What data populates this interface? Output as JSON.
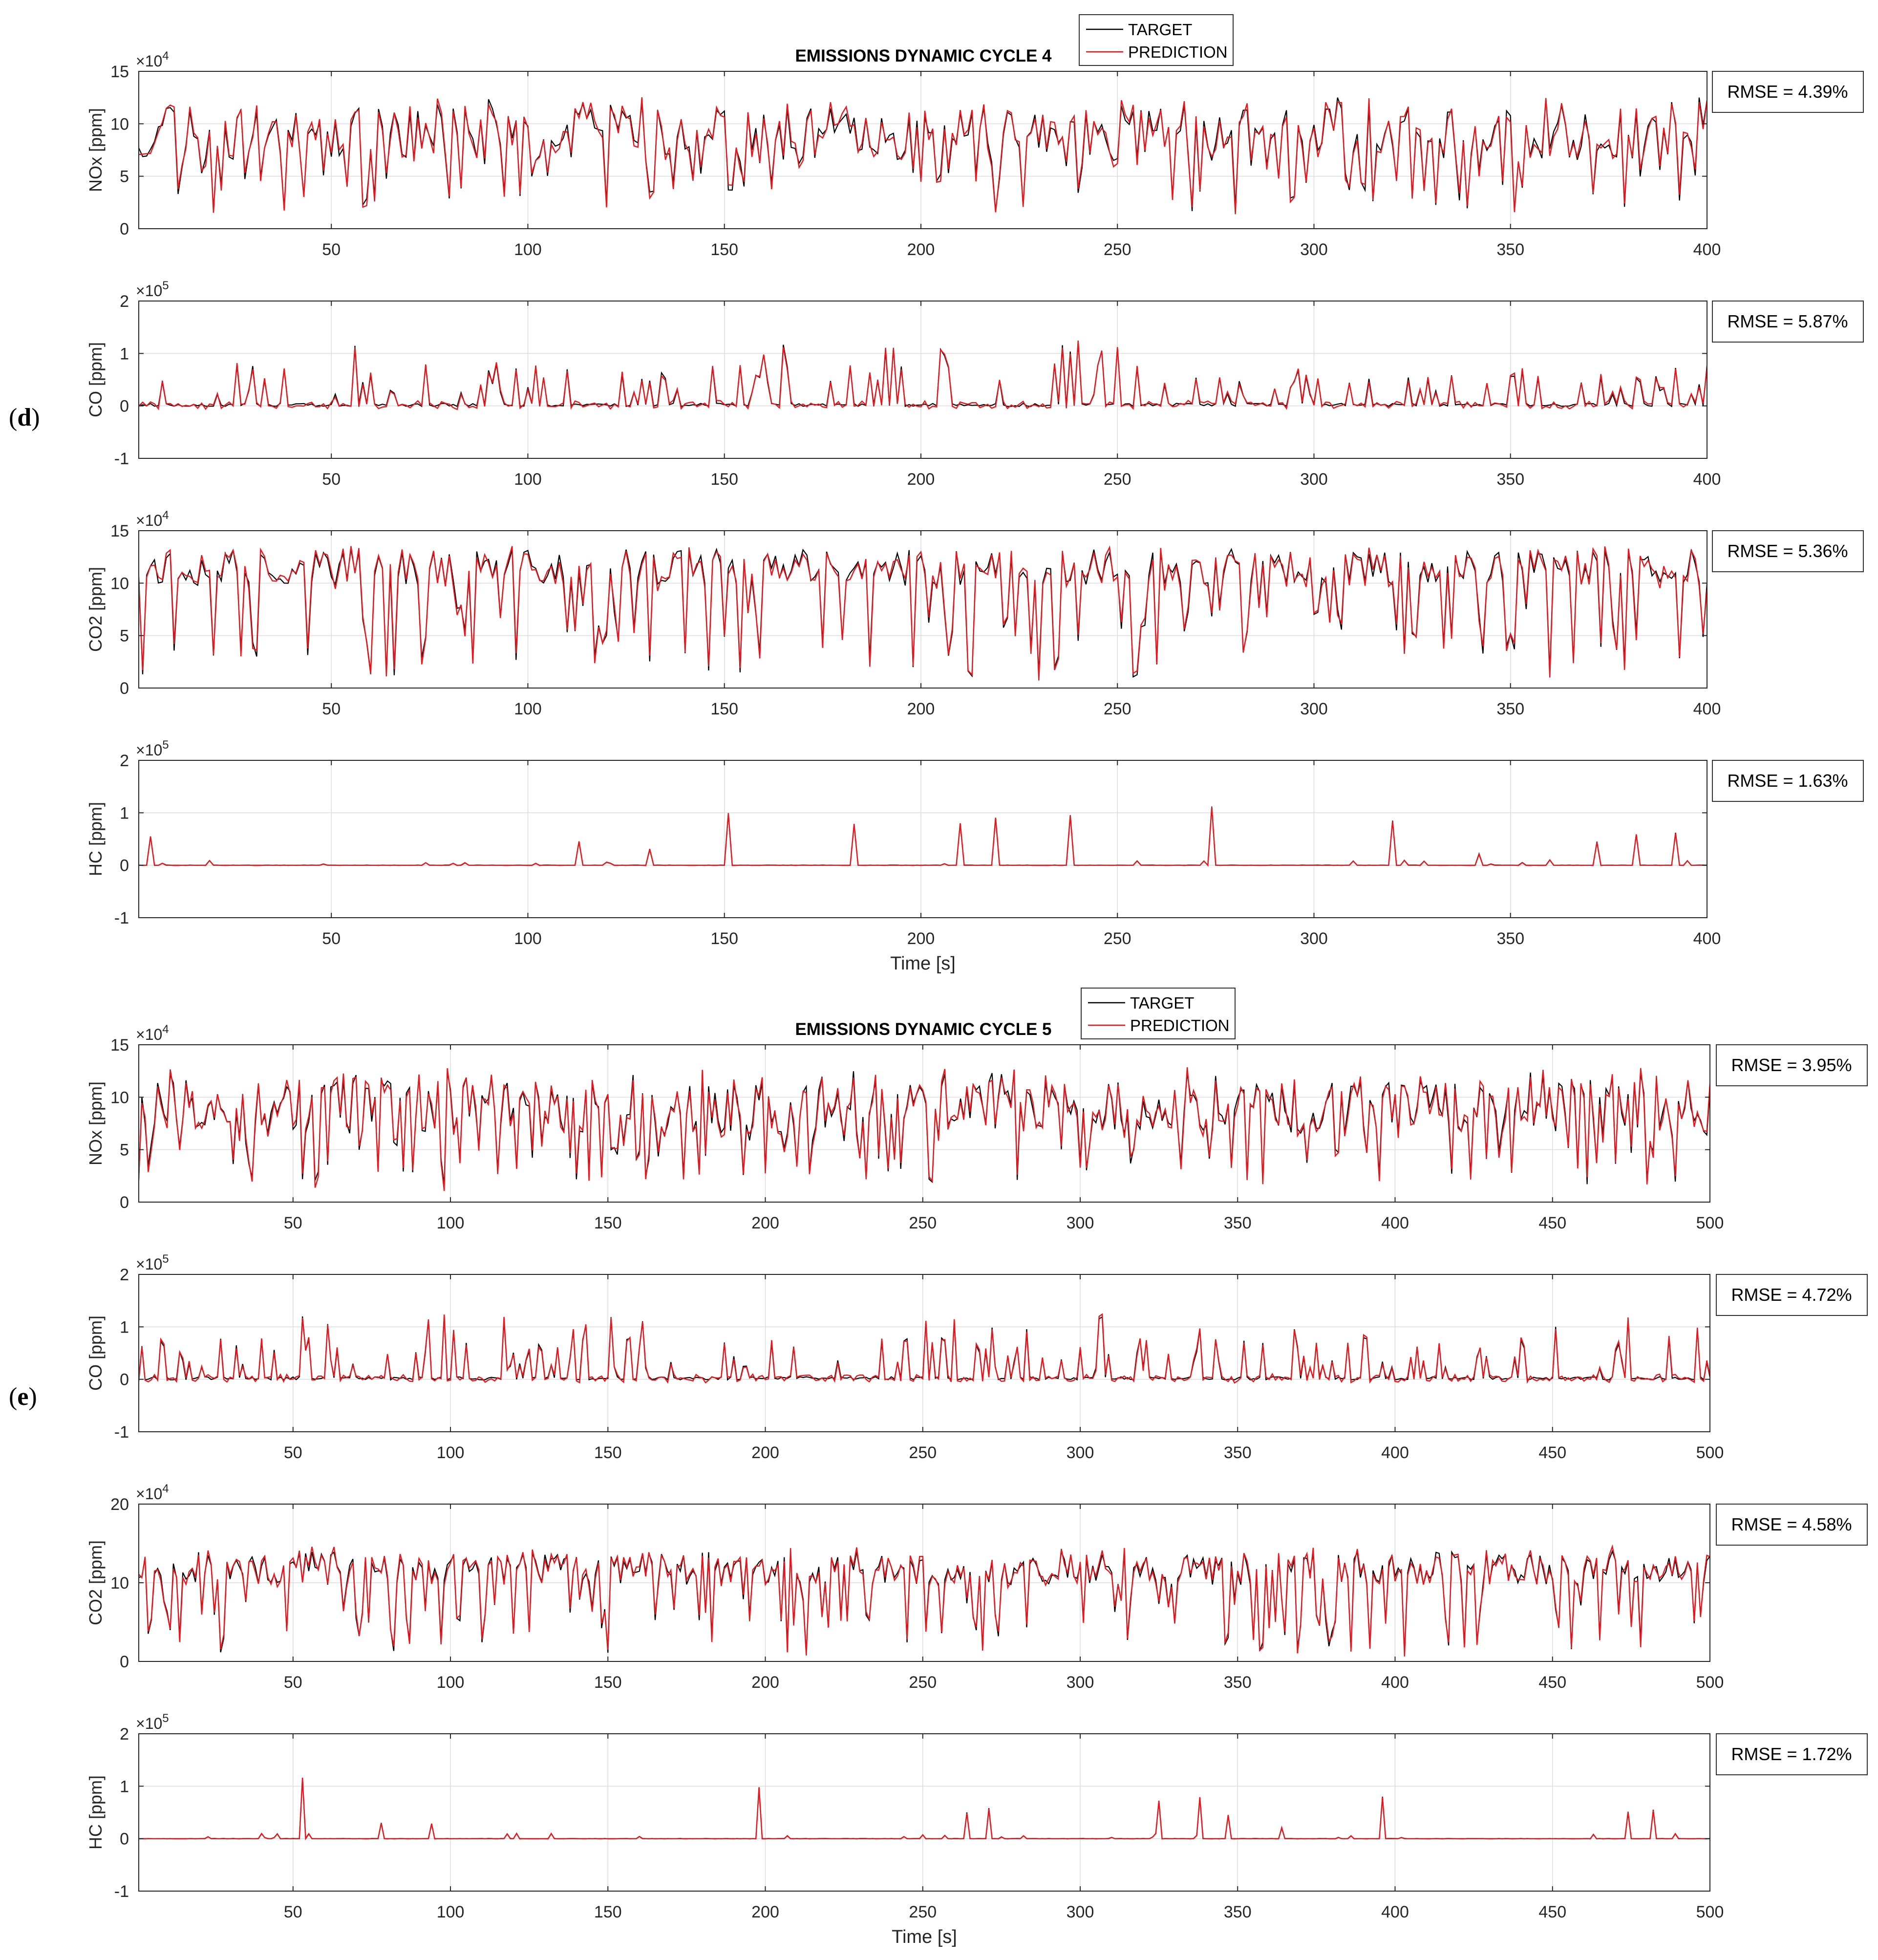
{
  "legend": {
    "target": "TARGET",
    "prediction": "PREDICTION"
  },
  "colors": {
    "target": "#000000",
    "prediction": "#e8171d",
    "grid": "#dcdcdc"
  },
  "panels": [
    {
      "label": "d",
      "title": "EMISSIONS DYNAMIC CYCLE 4",
      "xlabel": "Time [s]",
      "xlim": [
        1,
        400
      ],
      "xticks": [
        50,
        100,
        150,
        200,
        250,
        300,
        350,
        400
      ]
    },
    {
      "label": "e",
      "title": "EMISSIONS DYNAMIC CYCLE 5",
      "xlabel": "Time [s]",
      "xlim": [
        1,
        500
      ],
      "xticks": [
        50,
        100,
        150,
        200,
        250,
        300,
        350,
        400,
        450,
        500
      ]
    }
  ],
  "chart_data": [
    {
      "type": "line",
      "panel": 0,
      "ylabel": "NOx [ppm]",
      "exponent": "4",
      "ylim": [
        0,
        15
      ],
      "yticks": [
        0,
        5,
        10,
        15
      ],
      "rmse": "RMSE = 4.39%",
      "n": 400,
      "kind": "nox",
      "seed": 11,
      "series": [
        {
          "name": "TARGET"
        },
        {
          "name": "PREDICTION"
        }
      ]
    },
    {
      "type": "line",
      "panel": 0,
      "ylabel": "CO [ppm]",
      "exponent": "5",
      "ylim": [
        -1,
        2
      ],
      "yticks": [
        -1,
        0,
        1,
        2
      ],
      "rmse": "RMSE = 5.87%",
      "n": 400,
      "kind": "co",
      "seed": 23,
      "series": [
        {
          "name": "TARGET"
        },
        {
          "name": "PREDICTION"
        }
      ]
    },
    {
      "type": "line",
      "panel": 0,
      "ylabel": "CO2 [ppm]",
      "exponent": "4",
      "ylim": [
        0,
        15
      ],
      "yticks": [
        0,
        5,
        10,
        15
      ],
      "rmse": "RMSE = 5.36%",
      "n": 400,
      "kind": "co2",
      "seed": 37,
      "series": [
        {
          "name": "TARGET"
        },
        {
          "name": "PREDICTION"
        }
      ]
    },
    {
      "type": "line",
      "panel": 0,
      "ylabel": "HC [ppm]",
      "exponent": "5",
      "ylim": [
        -1,
        2
      ],
      "yticks": [
        -1,
        0,
        1,
        2
      ],
      "rmse": "RMSE = 1.63%",
      "n": 400,
      "kind": "hc",
      "seed": 41,
      "spikes": [
        [
          4,
          0.55
        ],
        [
          151,
          0.98
        ],
        [
          183,
          0.78
        ],
        [
          210,
          0.8
        ],
        [
          219,
          0.9
        ],
        [
          238,
          0.95
        ],
        [
          274,
          1.12
        ],
        [
          320,
          0.85
        ],
        [
          372,
          0.45
        ],
        [
          382,
          0.58
        ],
        [
          392,
          0.62
        ],
        [
          113,
          0.45
        ],
        [
          131,
          0.3
        ],
        [
          342,
          0.22
        ]
      ],
      "series": [
        {
          "name": "TARGET"
        },
        {
          "name": "PREDICTION"
        }
      ]
    },
    {
      "type": "line",
      "panel": 1,
      "ylabel": "NOx [ppm]",
      "exponent": "4",
      "ylim": [
        0,
        15
      ],
      "yticks": [
        0,
        5,
        10,
        15
      ],
      "rmse": "RMSE = 3.95%",
      "n": 500,
      "kind": "nox",
      "seed": 53,
      "series": [
        {
          "name": "TARGET"
        },
        {
          "name": "PREDICTION"
        }
      ]
    },
    {
      "type": "line",
      "panel": 1,
      "ylabel": "CO [ppm]",
      "exponent": "5",
      "ylim": [
        -1,
        2
      ],
      "yticks": [
        -1,
        0,
        1,
        2
      ],
      "rmse": "RMSE = 4.72%",
      "n": 500,
      "kind": "co",
      "seed": 67,
      "series": [
        {
          "name": "TARGET"
        },
        {
          "name": "PREDICTION"
        }
      ]
    },
    {
      "type": "line",
      "panel": 1,
      "ylabel": "CO2 [ppm]",
      "exponent": "4",
      "ylim": [
        0,
        20
      ],
      "yticks": [
        0,
        10,
        20
      ],
      "rmse": "RMSE = 4.58%",
      "n": 500,
      "kind": "co2",
      "seed": 71,
      "series": [
        {
          "name": "TARGET"
        },
        {
          "name": "PREDICTION"
        }
      ]
    },
    {
      "type": "line",
      "panel": 1,
      "ylabel": "HC [ppm]",
      "exponent": "5",
      "ylim": [
        -1,
        2
      ],
      "yticks": [
        -1,
        0,
        1,
        2
      ],
      "rmse": "RMSE = 1.72%",
      "n": 500,
      "kind": "hc",
      "seed": 83,
      "spikes": [
        [
          53,
          1.15
        ],
        [
          198,
          0.98
        ],
        [
          264,
          0.5
        ],
        [
          271,
          0.58
        ],
        [
          325,
          0.72
        ],
        [
          338,
          0.78
        ],
        [
          347,
          0.45
        ],
        [
          396,
          0.8
        ],
        [
          78,
          0.3
        ],
        [
          94,
          0.28
        ],
        [
          474,
          0.5
        ],
        [
          482,
          0.55
        ],
        [
          364,
          0.2
        ]
      ],
      "series": [
        {
          "name": "TARGET"
        },
        {
          "name": "PREDICTION"
        }
      ]
    }
  ]
}
